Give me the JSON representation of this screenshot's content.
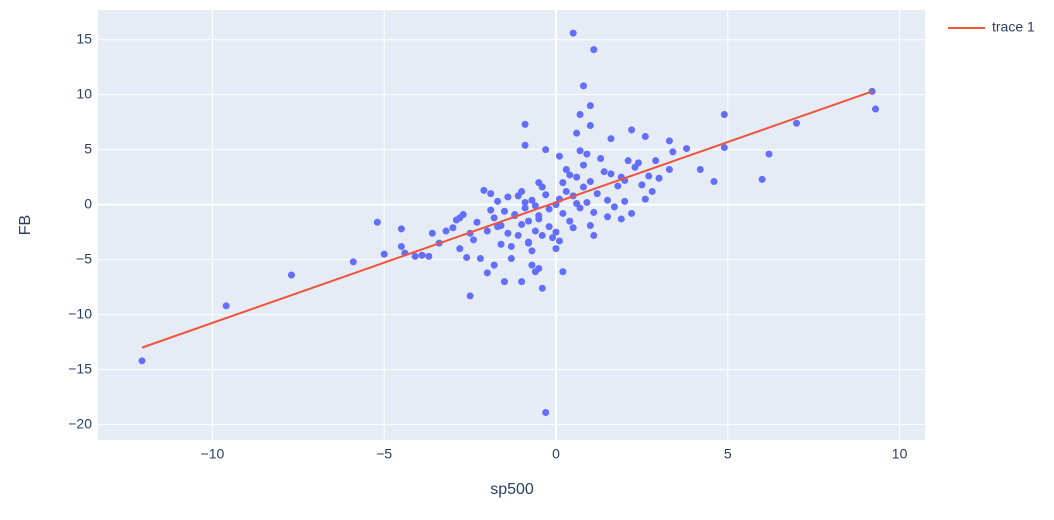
{
  "chart_data": {
    "type": "scatter",
    "xlabel": "sp500",
    "ylabel": "FB",
    "xlim": [
      -13.33,
      10.74
    ],
    "ylim": [
      -21.4,
      17.7
    ],
    "xticks": [
      {
        "value": -10,
        "label": "−10"
      },
      {
        "value": -5,
        "label": "−5"
      },
      0,
      5,
      10
    ],
    "yticks": [
      {
        "value": -20,
        "label": "−20"
      },
      {
        "value": -15,
        "label": "−15"
      },
      {
        "value": -10,
        "label": "−10"
      },
      {
        "value": -5,
        "label": "−5"
      },
      0,
      5,
      10,
      15
    ],
    "grid": true,
    "legend": "right",
    "series": [
      {
        "mode": "markers",
        "color": "#636efa",
        "x": [
          -12.05,
          -9.6,
          -7.7,
          -5.9,
          -5.2,
          -5.0,
          -4.5,
          -4.5,
          -4.4,
          -4.1,
          -3.9,
          -3.7,
          -3.6,
          -3.4,
          -3.2,
          -3.0,
          -2.9,
          -2.8,
          -2.7,
          -2.6,
          -2.5,
          -2.4,
          -2.2,
          -2.1,
          -2.0,
          -1.9,
          -1.8,
          -1.7,
          -1.6,
          -1.5,
          -1.4,
          -1.3,
          -1.2,
          -1.1,
          -1.0,
          -0.9,
          -0.8,
          -0.7,
          -0.6,
          -0.5,
          -0.4,
          -0.3,
          -0.3,
          -0.9,
          -0.9,
          -0.5,
          0.0,
          0.1,
          0.2,
          0.5,
          1.1,
          0.8,
          1.0,
          0.7,
          1.0,
          0.6,
          1.6,
          2.2,
          2.6,
          3.3,
          3.4,
          3.8,
          4.2,
          4.6,
          4.9,
          4.9,
          6.0,
          6.2,
          7.0,
          9.2,
          9.3,
          3.3,
          2.8,
          2.6,
          2.2,
          2.0,
          1.1,
          1.5,
          1.9,
          2.4,
          2.1,
          0.9,
          0.1,
          0.3,
          -0.2,
          0.5,
          -0.5,
          0.8,
          -0.8,
          1.0,
          -1.0,
          0.2,
          -0.3,
          0.6,
          -0.6,
          1.2,
          -1.2,
          0.4,
          -0.4,
          1.4,
          -1.4,
          0.7,
          -0.7,
          0.0,
          0.9,
          -0.9,
          1.6,
          -1.6,
          0.3,
          -0.1,
          1.8,
          -1.8,
          0.5,
          -0.5,
          1.1,
          -1.1,
          2.0,
          -2.0,
          0.2,
          -0.2,
          1.3,
          -1.3,
          0.6,
          -0.6,
          0.8,
          -0.8,
          1.5,
          -1.5,
          2.3,
          -2.3,
          0.1,
          0.0,
          1.7,
          -1.7,
          2.5,
          -2.5,
          0.4,
          -0.4,
          1.0,
          -1.0,
          0.7,
          -0.7,
          2.7,
          1.9,
          -1.9,
          3.0,
          2.9,
          -2.8
        ],
        "values": [
          -14.2,
          -9.2,
          -6.4,
          -5.2,
          -1.6,
          -4.5,
          -2.2,
          -3.8,
          -4.4,
          -4.7,
          -4.6,
          -4.7,
          -2.6,
          -3.5,
          -2.4,
          -2.1,
          -1.4,
          -4.0,
          -0.9,
          -4.8,
          -8.3,
          -3.2,
          -4.9,
          1.3,
          -6.2,
          -0.5,
          -5.5,
          -2.0,
          -3.6,
          -7.0,
          0.7,
          -4.9,
          -1.0,
          -2.8,
          -7.0,
          0.2,
          -3.5,
          -5.5,
          -6.1,
          -5.8,
          -7.6,
          -18.9,
          5.0,
          5.4,
          7.3,
          -1.3,
          -2.5,
          -3.3,
          -6.1,
          15.6,
          14.1,
          10.8,
          9.0,
          8.2,
          7.2,
          6.5,
          6.0,
          6.8,
          6.2,
          5.8,
          4.8,
          5.1,
          3.2,
          2.1,
          8.2,
          5.2,
          2.3,
          4.6,
          7.4,
          10.3,
          8.7,
          3.2,
          1.2,
          0.5,
          -0.8,
          0.3,
          -2.8,
          -1.1,
          2.5,
          3.8,
          4.0,
          4.6,
          0.5,
          1.2,
          -0.4,
          0.8,
          -1.0,
          1.6,
          -1.5,
          2.1,
          -1.8,
          -0.8,
          0.9,
          2.5,
          -2.4,
          1.0,
          -0.9,
          -1.5,
          1.6,
          3.0,
          -2.6,
          -0.3,
          0.4,
          0.0,
          0.2,
          -0.3,
          2.8,
          -1.9,
          3.2,
          -3.0,
          1.7,
          -1.2,
          -2.1,
          2.0,
          -0.7,
          0.8,
          2.2,
          -2.4,
          2.0,
          -2.0,
          4.2,
          -3.8,
          0.1,
          -0.1,
          3.6,
          -3.4,
          0.4,
          -0.6,
          3.4,
          -1.6,
          4.4,
          -4.0,
          -0.2,
          0.3,
          1.8,
          -2.6,
          2.7,
          -2.8,
          -1.9,
          1.2,
          4.9,
          -4.2,
          2.6,
          -1.3,
          1.0,
          2.4,
          4.0,
          -1.2
        ]
      },
      {
        "mode": "lines",
        "name": "trace 1",
        "color": "#ef553b",
        "x": [
          -12.05,
          9.2
        ],
        "values": [
          -13.0,
          10.3
        ]
      }
    ]
  }
}
